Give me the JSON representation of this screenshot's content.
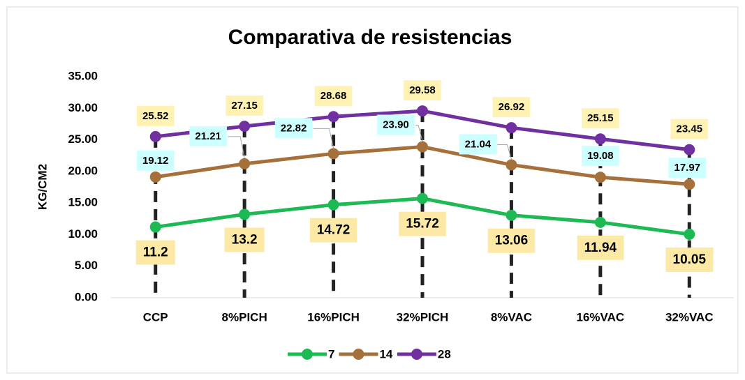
{
  "chart_data": {
    "type": "line",
    "title": "Comparativa de resistencias",
    "y_label": "KG/CM2",
    "categories": [
      "CCP",
      "8%PICH",
      "16%PICH",
      "32%PICH",
      "8%VAC",
      "16%VAC",
      "32%VAC"
    ],
    "series": [
      {
        "name": "7",
        "color": "#1db954",
        "values": [
          11.2,
          13.2,
          14.72,
          15.72,
          13.06,
          11.94,
          10.05
        ],
        "value_labels": [
          "11.2",
          "13.2",
          "14.72",
          "15.72",
          "13.06",
          "11.94",
          "10.05"
        ]
      },
      {
        "name": "14",
        "color": "#a5703a",
        "values": [
          19.12,
          21.21,
          22.82,
          23.9,
          21.04,
          19.08,
          17.97
        ],
        "value_labels": [
          "19.12",
          "21.21",
          "22.82",
          "23.90",
          "21.04",
          "19.08",
          "17.97"
        ]
      },
      {
        "name": "28",
        "color": "#7030a0",
        "values": [
          25.52,
          27.15,
          28.68,
          29.58,
          26.92,
          25.15,
          23.45
        ],
        "value_labels": [
          "25.52",
          "27.15",
          "28.68",
          "29.58",
          "26.92",
          "25.15",
          "23.45"
        ]
      }
    ],
    "ylim": [
      0,
      35
    ],
    "yticks": [
      {
        "value": 0,
        "label": "0.00"
      },
      {
        "value": 5,
        "label": "5.00"
      },
      {
        "value": 10,
        "label": "10.00"
      },
      {
        "value": 15,
        "label": "15.00"
      },
      {
        "value": 20,
        "label": "20.00"
      },
      {
        "value": 25,
        "label": "25.00"
      },
      {
        "value": 30,
        "label": "30.00"
      },
      {
        "value": 35,
        "label": "35.00"
      }
    ],
    "legend": "bottom"
  }
}
